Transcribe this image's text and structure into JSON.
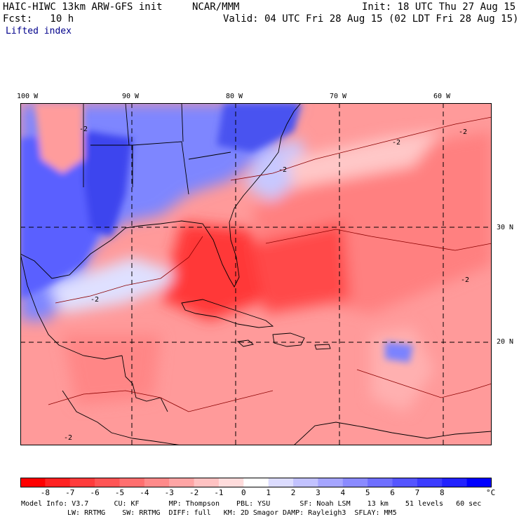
{
  "header": {
    "model": "HAIC-HIWC 13km ARW-GFS init",
    "center": "NCAR/MMM",
    "init": "Init: 18 UTC Thu 27 Aug 15",
    "fcst": "Fcst:   10 h",
    "valid": "Valid: 04 UTC Fri 28 Aug 15 (02 LDT Fri 28 Aug 15)",
    "field": "Lifted index"
  },
  "map": {
    "lon_labels": [
      "100 W",
      "90 W",
      "80 W",
      "70 W",
      "60 W"
    ],
    "lat_labels": [
      "30 N",
      "20 N"
    ],
    "contour_label": "-2"
  },
  "colorbar": {
    "tick_labels": [
      "-8",
      "-7",
      "-6",
      "-5",
      "-4",
      "-3",
      "-2",
      "-1",
      "0",
      "1",
      "2",
      "3",
      "4",
      "5",
      "6",
      "7",
      "8"
    ],
    "unit": "°C",
    "colors": [
      "#ff0000",
      "#ff2222",
      "#ff3c3c",
      "#ff5555",
      "#ff6f6f",
      "#ff8a8a",
      "#ffa5a5",
      "#ffc2c2",
      "#ffdcdc",
      "#ffffff",
      "#dcdcff",
      "#c2c2ff",
      "#a5a5ff",
      "#8a8aff",
      "#6f6fff",
      "#5555ff",
      "#3c3cff",
      "#2222ff",
      "#0000ff"
    ]
  },
  "model_info": {
    "line1": "Model Info: V3.7      CU: KF       MP: Thompson    PBL: YSU       SF: Noah LSM    13 km    51 levels   60 sec",
    "line2": "LW: RRTMG    SW: RRTMG  DIFF: full   KM: 2D Smagor DAMP: Rayleigh3  SFLAY: MM5"
  }
}
